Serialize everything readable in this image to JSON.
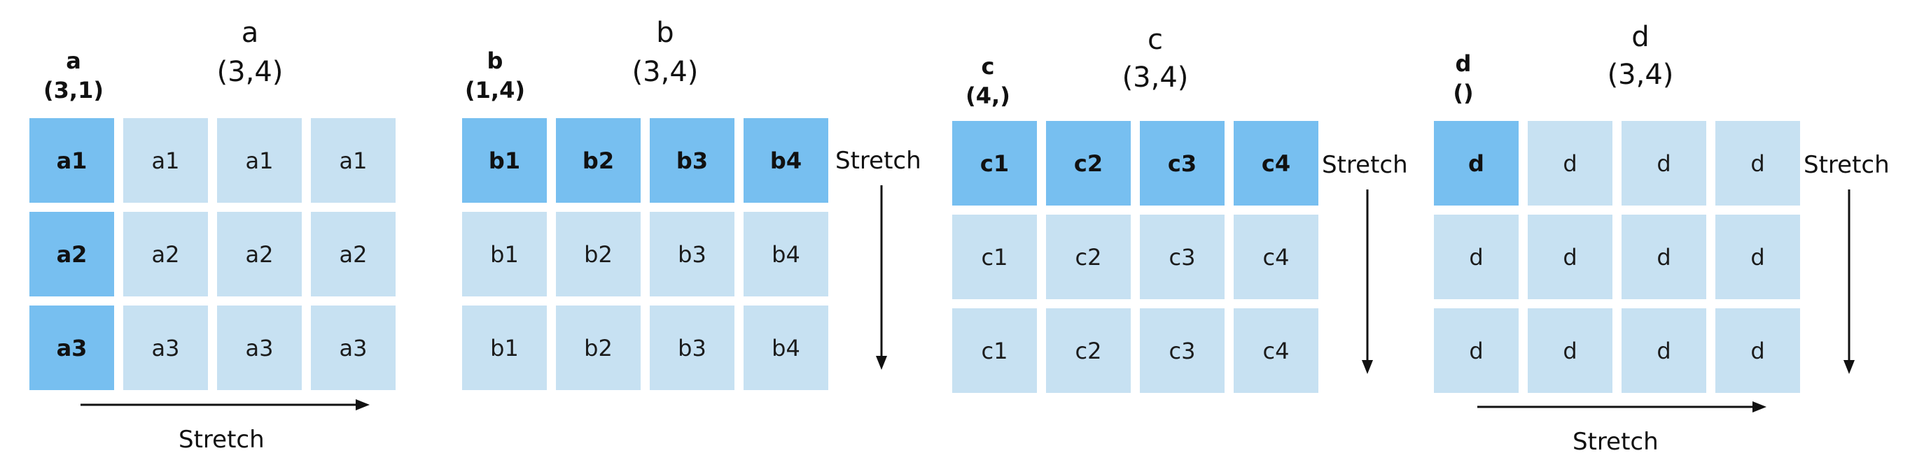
{
  "stretch_label": "Stretch",
  "colors": {
    "broadcast_cell": "#c7e1f2",
    "original_cell": "#77bff0",
    "arrow": "#111111"
  },
  "panels": [
    {
      "id": "a",
      "title": "a",
      "shape": "(3,4)",
      "input_name": "a",
      "input_shape": "(3,1)",
      "stretch_direction": "horizontal",
      "grid": [
        [
          {
            "text": "a1",
            "original": true
          },
          {
            "text": "a1",
            "original": false
          },
          {
            "text": "a1",
            "original": false
          },
          {
            "text": "a1",
            "original": false
          }
        ],
        [
          {
            "text": "a2",
            "original": true
          },
          {
            "text": "a2",
            "original": false
          },
          {
            "text": "a2",
            "original": false
          },
          {
            "text": "a2",
            "original": false
          }
        ],
        [
          {
            "text": "a3",
            "original": true
          },
          {
            "text": "a3",
            "original": false
          },
          {
            "text": "a3",
            "original": false
          },
          {
            "text": "a3",
            "original": false
          }
        ]
      ]
    },
    {
      "id": "b",
      "title": "b",
      "shape": "(3,4)",
      "input_name": "b",
      "input_shape": "(1,4)",
      "stretch_direction": "vertical",
      "grid": [
        [
          {
            "text": "b1",
            "original": true
          },
          {
            "text": "b2",
            "original": true
          },
          {
            "text": "b3",
            "original": true
          },
          {
            "text": "b4",
            "original": true
          }
        ],
        [
          {
            "text": "b1",
            "original": false
          },
          {
            "text": "b2",
            "original": false
          },
          {
            "text": "b3",
            "original": false
          },
          {
            "text": "b4",
            "original": false
          }
        ],
        [
          {
            "text": "b1",
            "original": false
          },
          {
            "text": "b2",
            "original": false
          },
          {
            "text": "b3",
            "original": false
          },
          {
            "text": "b4",
            "original": false
          }
        ]
      ]
    },
    {
      "id": "c",
      "title": "c",
      "shape": "(3,4)",
      "input_name": "c",
      "input_shape": "(4,)",
      "stretch_direction": "vertical",
      "grid": [
        [
          {
            "text": "c1",
            "original": true
          },
          {
            "text": "c2",
            "original": true
          },
          {
            "text": "c3",
            "original": true
          },
          {
            "text": "c4",
            "original": true
          }
        ],
        [
          {
            "text": "c1",
            "original": false
          },
          {
            "text": "c2",
            "original": false
          },
          {
            "text": "c3",
            "original": false
          },
          {
            "text": "c4",
            "original": false
          }
        ],
        [
          {
            "text": "c1",
            "original": false
          },
          {
            "text": "c2",
            "original": false
          },
          {
            "text": "c3",
            "original": false
          },
          {
            "text": "c4",
            "original": false
          }
        ]
      ]
    },
    {
      "id": "d",
      "title": "d",
      "shape": "(3,4)",
      "input_name": "d",
      "input_shape": "()",
      "stretch_direction": "both",
      "grid": [
        [
          {
            "text": "d",
            "original": true
          },
          {
            "text": "d",
            "original": false
          },
          {
            "text": "d",
            "original": false
          },
          {
            "text": "d",
            "original": false
          }
        ],
        [
          {
            "text": "d",
            "original": false
          },
          {
            "text": "d",
            "original": false
          },
          {
            "text": "d",
            "original": false
          },
          {
            "text": "d",
            "original": false
          }
        ],
        [
          {
            "text": "d",
            "original": false
          },
          {
            "text": "d",
            "original": false
          },
          {
            "text": "d",
            "original": false
          },
          {
            "text": "d",
            "original": false
          }
        ]
      ]
    }
  ]
}
